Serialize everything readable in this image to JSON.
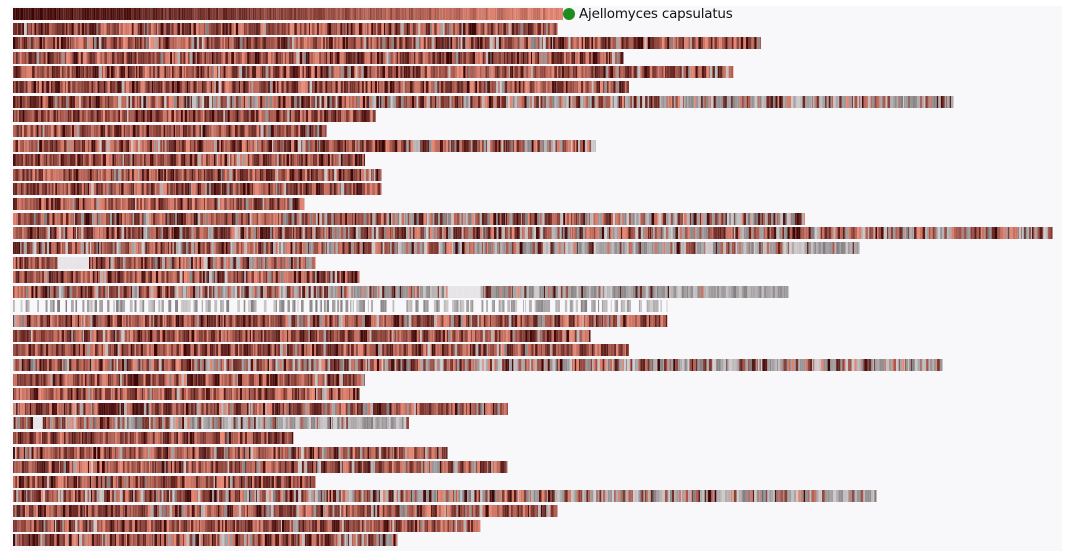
{
  "legend": {
    "label": "Ajellomyces capsulatus",
    "color": "#1e8c1e"
  },
  "chart_data": {
    "type": "heatmap",
    "title": "",
    "reference_track": {
      "name": "Ajellomyces capsulatus",
      "relative_length": 1.0
    },
    "rows": [
      {
        "relative_length": 0.99,
        "gray_fraction": 0.03
      },
      {
        "relative_length": 1.36,
        "gray_fraction": 0.08
      },
      {
        "relative_length": 1.11,
        "gray_fraction": 0.05
      },
      {
        "relative_length": 1.31,
        "gray_fraction": 0.04
      },
      {
        "relative_length": 1.12,
        "gray_fraction": 0.05
      },
      {
        "relative_length": 1.71,
        "gray_fraction": 0.35
      },
      {
        "relative_length": 0.66,
        "gray_fraction": 0.02
      },
      {
        "relative_length": 0.57,
        "gray_fraction": 0.02
      },
      {
        "relative_length": 1.06,
        "gray_fraction": 0.12
      },
      {
        "relative_length": 0.64,
        "gray_fraction": 0.03
      },
      {
        "relative_length": 0.67,
        "gray_fraction": 0.03
      },
      {
        "relative_length": 0.67,
        "gray_fraction": 0.04
      },
      {
        "relative_length": 0.53,
        "gray_fraction": 0.03
      },
      {
        "relative_length": 1.44,
        "gray_fraction": 0.3
      },
      {
        "relative_length": 1.89,
        "gray_fraction": 0.22
      },
      {
        "relative_length": 1.54,
        "gray_fraction": 0.45
      },
      {
        "relative_length": 0.55,
        "gray_fraction": 0.15,
        "gap": [
          0.14,
          0.25
        ]
      },
      {
        "relative_length": 0.63,
        "gray_fraction": 0.05
      },
      {
        "relative_length": 1.41,
        "gray_fraction": 0.55,
        "gap": [
          0.56,
          0.6
        ]
      },
      {
        "relative_length": 1.19,
        "gray_fraction": 1.0,
        "sparse": true
      },
      {
        "relative_length": 1.19,
        "gray_fraction": 0.06
      },
      {
        "relative_length": 1.05,
        "gray_fraction": 0.06
      },
      {
        "relative_length": 1.12,
        "gray_fraction": 0.05
      },
      {
        "relative_length": 1.69,
        "gray_fraction": 0.38
      },
      {
        "relative_length": 0.64,
        "gray_fraction": 0.05
      },
      {
        "relative_length": 0.63,
        "gray_fraction": 0.04
      },
      {
        "relative_length": 0.9,
        "gray_fraction": 0.1
      },
      {
        "relative_length": 0.72,
        "gray_fraction": 0.55,
        "gap": [
          0.05,
          0.07
        ]
      },
      {
        "relative_length": 0.51,
        "gray_fraction": 0.04
      },
      {
        "relative_length": 0.79,
        "gray_fraction": 0.08
      },
      {
        "relative_length": 0.9,
        "gray_fraction": 0.12
      },
      {
        "relative_length": 0.55,
        "gray_fraction": 0.04
      },
      {
        "relative_length": 1.57,
        "gray_fraction": 0.4
      },
      {
        "relative_length": 0.99,
        "gray_fraction": 0.08
      },
      {
        "relative_length": 0.85,
        "gray_fraction": 0.06
      },
      {
        "relative_length": 0.7,
        "gray_fraction": 0.15
      }
    ]
  }
}
